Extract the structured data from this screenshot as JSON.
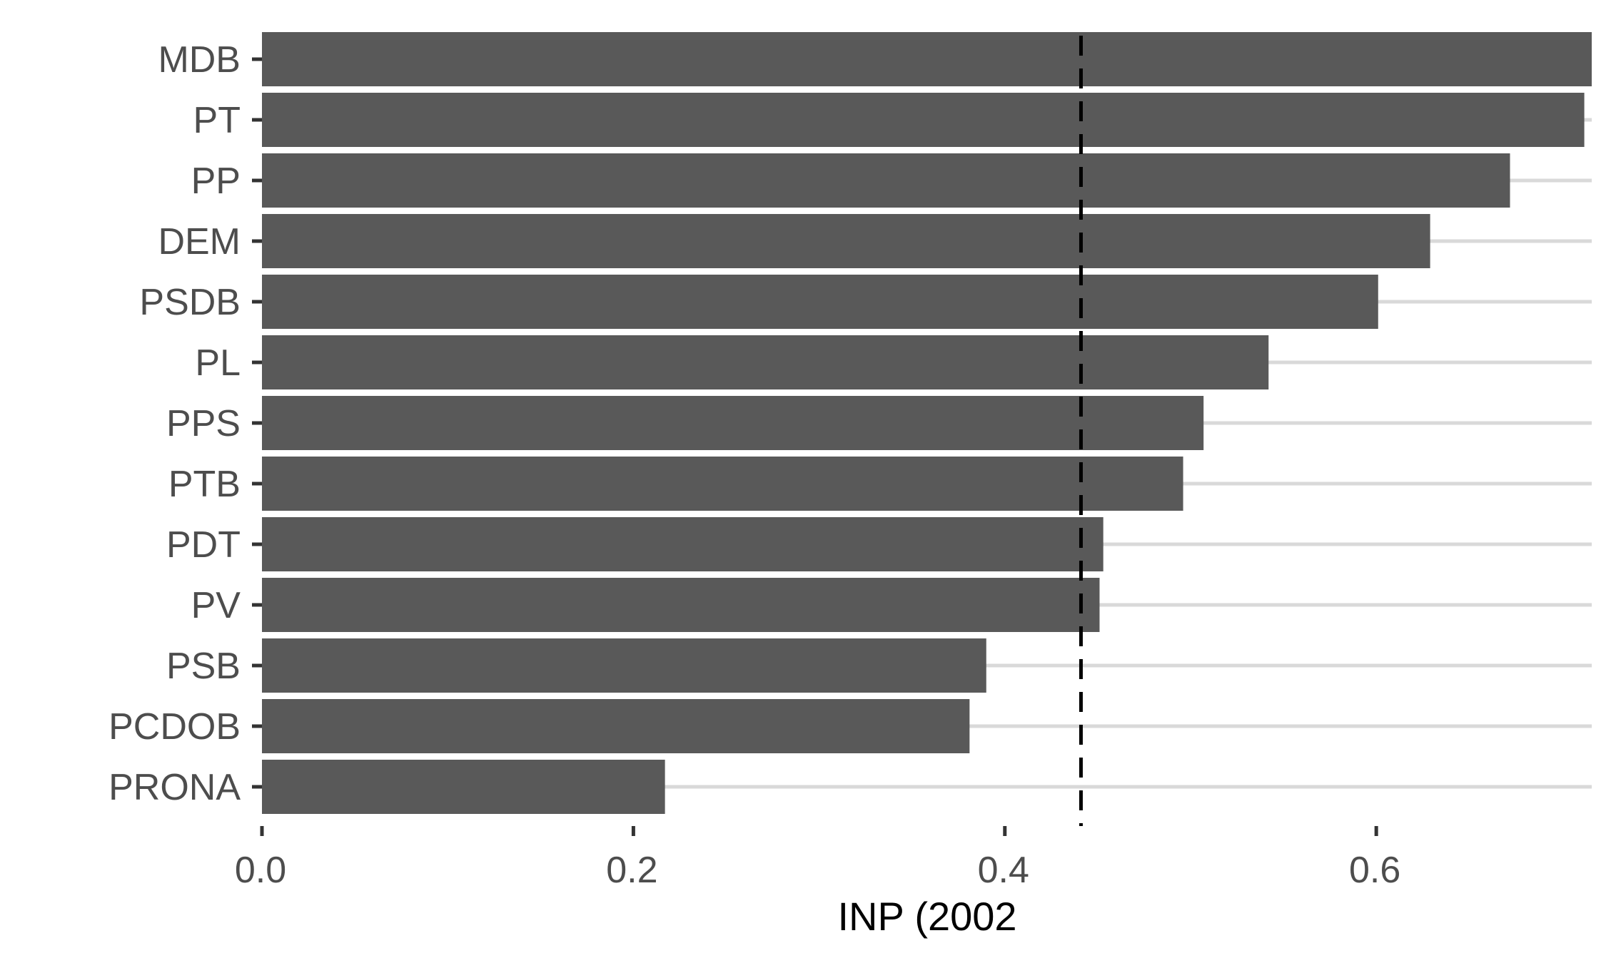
{
  "chart_data": {
    "type": "bar",
    "orientation": "horizontal",
    "categories": [
      "MDB",
      "PT",
      "PP",
      "DEM",
      "PSDB",
      "PL",
      "PPS",
      "PTB",
      "PDT",
      "PV",
      "PSB",
      "PCDOB",
      "PRONA"
    ],
    "values": [
      0.716,
      0.712,
      0.672,
      0.629,
      0.601,
      0.542,
      0.507,
      0.496,
      0.453,
      0.451,
      0.39,
      0.381,
      0.217
    ],
    "xlabel": "INP (2002",
    "ylabel": "",
    "xlim": [
      0,
      0.716
    ],
    "xticks": [
      0.0,
      0.2,
      0.4,
      0.6
    ],
    "xtick_labels": [
      "0.0",
      "0.2",
      "0.4",
      "0.6"
    ],
    "reference_line": {
      "x": 0.441,
      "style": "dashed",
      "color": "#000000"
    },
    "grid": {
      "horizontal_major": true,
      "vertical": false
    },
    "colors": {
      "bar": "#595959",
      "grid": "#d9d9d9",
      "axis_text": "#4d4d4d",
      "tick": "#333333"
    }
  }
}
